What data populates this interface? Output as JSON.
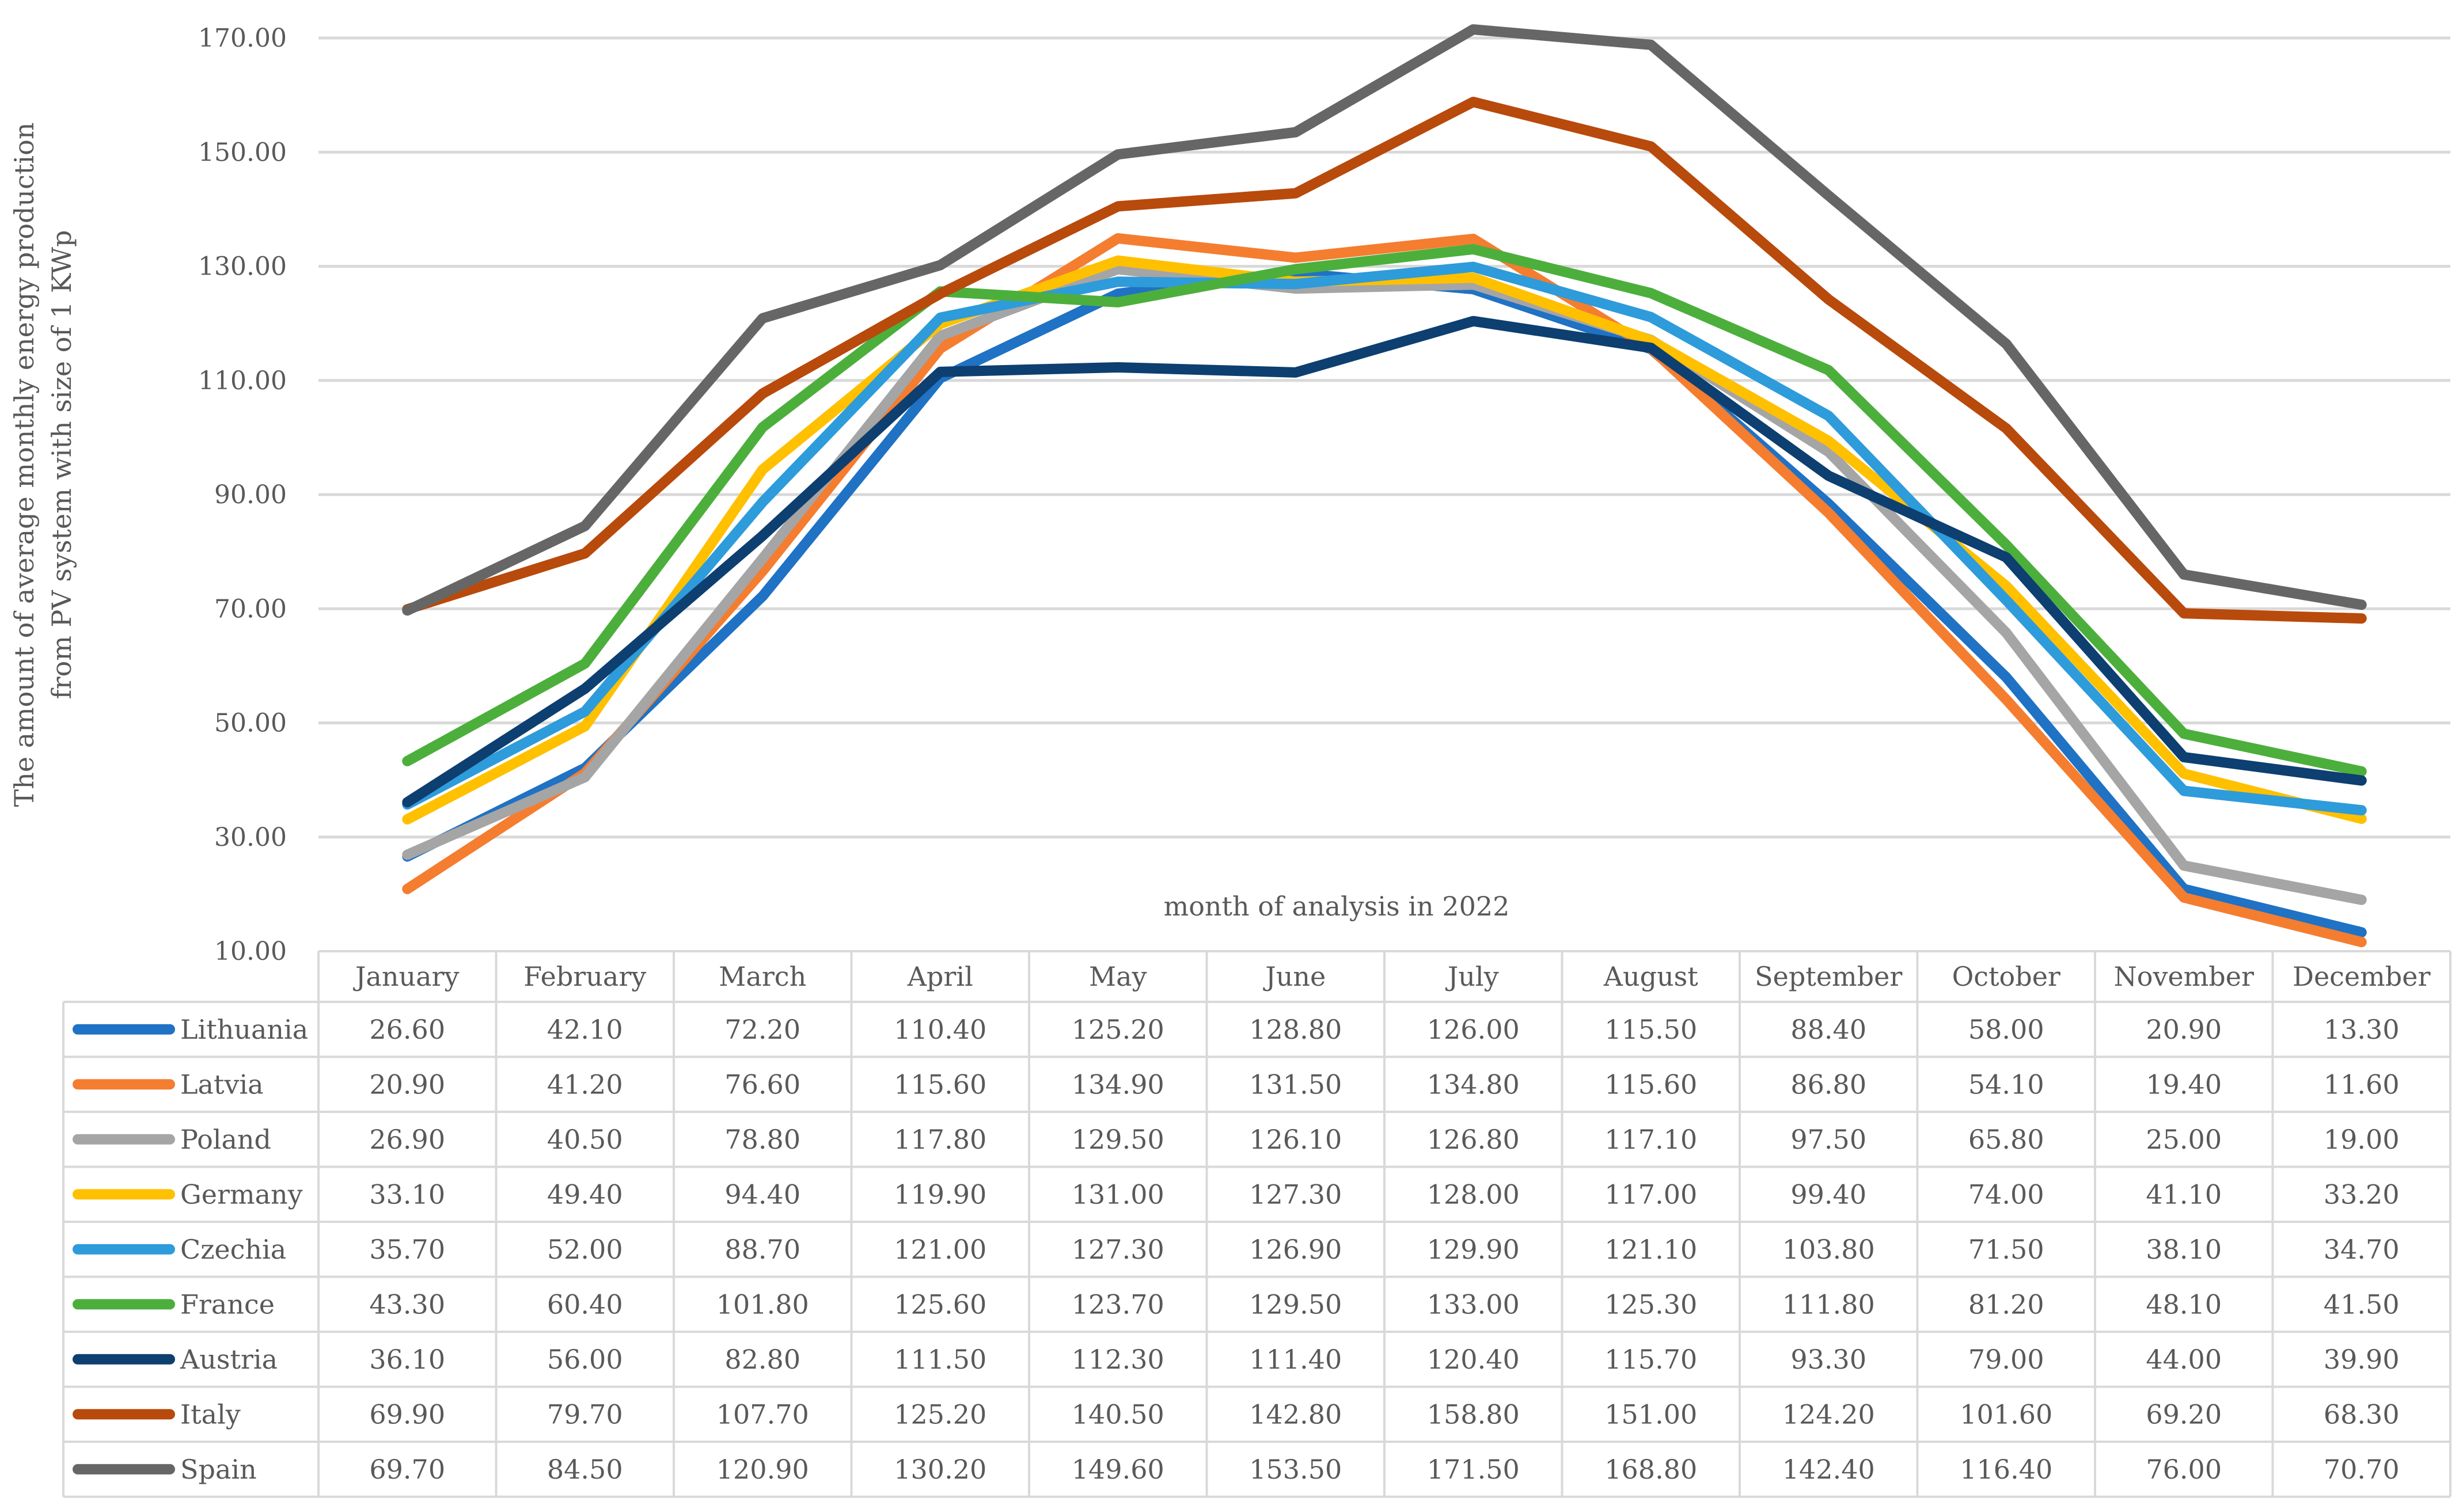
{
  "chart_data": {
    "type": "line",
    "title": "",
    "xlabel": "month of analysis in 2022",
    "ylabel_lines": [
      "The amount of average monthly energy production",
      "from PV system with size of 1 KWp"
    ],
    "ylim": [
      10,
      170
    ],
    "yticks": [
      "10.00",
      "30.00",
      "50.00",
      "70.00",
      "90.00",
      "110.00",
      "130.00",
      "150.00",
      "170.00"
    ],
    "legend_position": "data-table-left",
    "grid": true,
    "categories": [
      "January",
      "February",
      "March",
      "April",
      "May",
      "June",
      "July",
      "August",
      "September",
      "October",
      "November",
      "December"
    ],
    "series": [
      {
        "name": "Lithuania",
        "color": "#1F72C4",
        "values": [
          26.6,
          42.1,
          72.2,
          110.4,
          125.2,
          128.8,
          126.0,
          115.5,
          88.4,
          58.0,
          20.9,
          13.3
        ],
        "labels": [
          "26.60",
          "42.10",
          "72.20",
          "110.40",
          "125.20",
          "128.80",
          "126.00",
          "115.50",
          "88.40",
          "58.00",
          "20.90",
          "13.30"
        ]
      },
      {
        "name": "Latvia",
        "color": "#F47D30",
        "values": [
          20.9,
          41.2,
          76.6,
          115.6,
          134.9,
          131.5,
          134.8,
          115.6,
          86.8,
          54.1,
          19.4,
          11.6
        ],
        "labels": [
          "20.90",
          "41.20",
          "76.60",
          "115.60",
          "134.90",
          "131.50",
          "134.80",
          "115.60",
          "86.80",
          "54.10",
          "19.40",
          "11.60"
        ]
      },
      {
        "name": "Poland",
        "color": "#A5A5A5",
        "values": [
          26.9,
          40.5,
          78.8,
          117.8,
          129.5,
          126.1,
          126.8,
          117.1,
          97.5,
          65.8,
          25.0,
          19.0
        ],
        "labels": [
          "26.90",
          "40.50",
          "78.80",
          "117.80",
          "129.50",
          "126.10",
          "126.80",
          "117.10",
          "97.50",
          "65.80",
          "25.00",
          "19.00"
        ]
      },
      {
        "name": "Germany",
        "color": "#FFC000",
        "values": [
          33.1,
          49.4,
          94.4,
          119.9,
          131.0,
          127.3,
          128.0,
          117.0,
          99.4,
          74.0,
          41.1,
          33.2
        ],
        "labels": [
          "33.10",
          "49.40",
          "94.40",
          "119.90",
          "131.00",
          "127.30",
          "128.00",
          "117.00",
          "99.40",
          "74.00",
          "41.10",
          "33.20"
        ]
      },
      {
        "name": "Czechia",
        "color": "#2E9BDB",
        "values": [
          35.7,
          52.0,
          88.7,
          121.0,
          127.3,
          126.9,
          129.9,
          121.1,
          103.8,
          71.5,
          38.1,
          34.7
        ],
        "labels": [
          "35.70",
          "52.00",
          "88.70",
          "121.00",
          "127.30",
          "126.90",
          "129.90",
          "121.10",
          "103.80",
          "71.50",
          "38.10",
          "34.70"
        ]
      },
      {
        "name": "France",
        "color": "#4CAF3C",
        "values": [
          43.3,
          60.4,
          101.8,
          125.6,
          123.7,
          129.5,
          133.0,
          125.3,
          111.8,
          81.2,
          48.1,
          41.5
        ],
        "labels": [
          "43.30",
          "60.40",
          "101.80",
          "125.60",
          "123.70",
          "129.50",
          "133.00",
          "125.30",
          "111.80",
          "81.20",
          "48.10",
          "41.50"
        ]
      },
      {
        "name": "Austria",
        "color": "#0D3F70",
        "values": [
          36.1,
          56.0,
          82.8,
          111.5,
          112.3,
          111.4,
          120.4,
          115.7,
          93.3,
          79.0,
          44.0,
          39.9
        ],
        "labels": [
          "36.10",
          "56.00",
          "82.80",
          "111.50",
          "112.30",
          "111.40",
          "120.40",
          "115.70",
          "93.30",
          "79.00",
          "44.00",
          "39.90"
        ]
      },
      {
        "name": "Italy",
        "color": "#B84A0C",
        "values": [
          69.9,
          79.7,
          107.7,
          125.2,
          140.5,
          142.8,
          158.8,
          151.0,
          124.2,
          101.6,
          69.2,
          68.3
        ],
        "labels": [
          "69.90",
          "79.70",
          "107.70",
          "125.20",
          "140.50",
          "142.80",
          "158.80",
          "151.00",
          "124.20",
          "101.60",
          "69.20",
          "68.30"
        ]
      },
      {
        "name": "Spain",
        "color": "#666666",
        "values": [
          69.7,
          84.5,
          120.9,
          130.2,
          149.6,
          153.5,
          171.5,
          168.8,
          142.4,
          116.4,
          76.0,
          70.7
        ],
        "labels": [
          "69.70",
          "84.50",
          "120.90",
          "130.20",
          "149.60",
          "153.50",
          "171.50",
          "168.80",
          "142.40",
          "116.40",
          "76.00",
          "70.70"
        ]
      }
    ]
  }
}
